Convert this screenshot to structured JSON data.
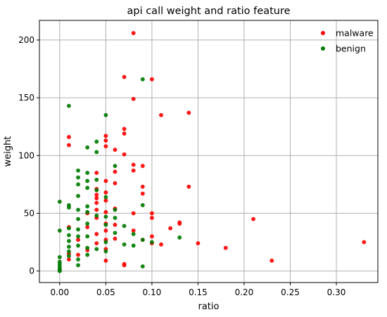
{
  "chart_data": {
    "type": "scatter",
    "title": "api call weight and ratio feature",
    "xlabel": "ratio",
    "ylabel": "weight",
    "xlim": [
      -0.022,
      0.345
    ],
    "ylim": [
      -10,
      217
    ],
    "xticks": [
      0.0,
      0.05,
      0.1,
      0.15,
      0.2,
      0.25,
      0.3
    ],
    "xtick_labels": [
      "0.00",
      "0.05",
      "0.10",
      "0.15",
      "0.20",
      "0.25",
      "0.30"
    ],
    "yticks": [
      0,
      50,
      100,
      150,
      200
    ],
    "ytick_labels": [
      "0",
      "50",
      "100",
      "150",
      "200"
    ],
    "grid": true,
    "legend": "top-right",
    "series": [
      {
        "name": "malware",
        "color": "#ff0000",
        "points": [
          [
            0.08,
            206
          ],
          [
            0.07,
            168
          ],
          [
            0.1,
            166
          ],
          [
            0.08,
            149
          ],
          [
            0.14,
            137
          ],
          [
            0.11,
            135
          ],
          [
            0.07,
            123
          ],
          [
            0.07,
            119
          ],
          [
            0.05,
            117
          ],
          [
            0.01,
            116
          ],
          [
            0.05,
            113
          ],
          [
            0.01,
            109
          ],
          [
            0.05,
            108
          ],
          [
            0.06,
            105
          ],
          [
            0.07,
            101
          ],
          [
            0.09,
            91
          ],
          [
            0.08,
            92
          ],
          [
            0.08,
            87
          ],
          [
            0.06,
            86
          ],
          [
            0.04,
            85
          ],
          [
            0.05,
            78
          ],
          [
            0.06,
            76
          ],
          [
            0.09,
            73
          ],
          [
            0.14,
            73
          ],
          [
            0.04,
            71
          ],
          [
            0.05,
            68
          ],
          [
            0.04,
            66
          ],
          [
            0.09,
            67
          ],
          [
            0.04,
            63
          ],
          [
            0.05,
            61
          ],
          [
            0.04,
            59
          ],
          [
            0.06,
            54
          ],
          [
            0.04,
            53
          ],
          [
            0.05,
            51
          ],
          [
            0.08,
            50
          ],
          [
            0.1,
            50
          ],
          [
            0.03,
            50
          ],
          [
            0.04,
            46
          ],
          [
            0.1,
            46
          ],
          [
            0.21,
            45
          ],
          [
            0.13,
            42
          ],
          [
            0.13,
            41
          ],
          [
            0.05,
            41
          ],
          [
            0.06,
            40
          ],
          [
            0.03,
            38
          ],
          [
            0.01,
            38
          ],
          [
            0.12,
            37
          ],
          [
            0.08,
            35
          ],
          [
            0.05,
            35
          ],
          [
            0.04,
            32
          ],
          [
            0.1,
            30
          ],
          [
            0.06,
            28
          ],
          [
            0.09,
            27
          ],
          [
            0.05,
            27
          ],
          [
            0.02,
            27
          ],
          [
            0.04,
            24
          ],
          [
            0.15,
            24
          ],
          [
            0.1,
            24
          ],
          [
            0.11,
            23
          ],
          [
            0.18,
            20
          ],
          [
            0.05,
            19
          ],
          [
            0.03,
            18
          ],
          [
            0.01,
            15
          ],
          [
            0.02,
            14
          ],
          [
            0.01,
            10
          ],
          [
            0.05,
            9
          ],
          [
            0.23,
            9
          ],
          [
            0.07,
            6
          ],
          [
            0.07,
            5
          ],
          [
            0.33,
            25
          ]
        ]
      },
      {
        "name": "benign",
        "color": "#007a00",
        "points": [
          [
            0.01,
            143
          ],
          [
            0.09,
            166
          ],
          [
            0.05,
            135
          ],
          [
            0.04,
            112
          ],
          [
            0.03,
            107
          ],
          [
            0.04,
            103
          ],
          [
            0.06,
            91
          ],
          [
            0.02,
            87
          ],
          [
            0.03,
            85
          ],
          [
            0.02,
            81
          ],
          [
            0.04,
            79
          ],
          [
            0.03,
            78
          ],
          [
            0.02,
            75
          ],
          [
            0.03,
            72
          ],
          [
            0.04,
            70
          ],
          [
            0.02,
            65
          ],
          [
            0.05,
            64
          ],
          [
            0.0,
            60
          ],
          [
            0.01,
            57
          ],
          [
            0.03,
            56
          ],
          [
            0.09,
            57
          ],
          [
            0.01,
            55
          ],
          [
            0.02,
            53
          ],
          [
            0.06,
            53
          ],
          [
            0.03,
            51
          ],
          [
            0.04,
            48
          ],
          [
            0.05,
            47
          ],
          [
            0.06,
            46
          ],
          [
            0.02,
            45
          ],
          [
            0.03,
            41
          ],
          [
            0.05,
            40
          ],
          [
            0.07,
            39
          ],
          [
            0.01,
            37
          ],
          [
            0.02,
            36
          ],
          [
            0.0,
            35
          ],
          [
            0.06,
            33
          ],
          [
            0.08,
            32
          ],
          [
            0.01,
            31
          ],
          [
            0.02,
            30
          ],
          [
            0.03,
            30
          ],
          [
            0.13,
            29
          ],
          [
            0.09,
            27
          ],
          [
            0.01,
            26
          ],
          [
            0.05,
            25
          ],
          [
            0.1,
            25
          ],
          [
            0.07,
            23
          ],
          [
            0.02,
            22
          ],
          [
            0.08,
            22
          ],
          [
            0.01,
            21
          ],
          [
            0.03,
            20
          ],
          [
            0.04,
            19
          ],
          [
            0.01,
            17
          ],
          [
            0.05,
            17
          ],
          [
            0.03,
            14
          ],
          [
            0.01,
            13
          ],
          [
            0.0,
            12
          ],
          [
            0.02,
            10
          ],
          [
            0.0,
            8
          ],
          [
            0.0,
            6
          ],
          [
            0.02,
            5
          ],
          [
            0.0,
            4
          ],
          [
            0.09,
            4
          ],
          [
            0.0,
            2
          ],
          [
            0.0,
            1
          ],
          [
            0.0,
            0
          ]
        ]
      }
    ]
  }
}
